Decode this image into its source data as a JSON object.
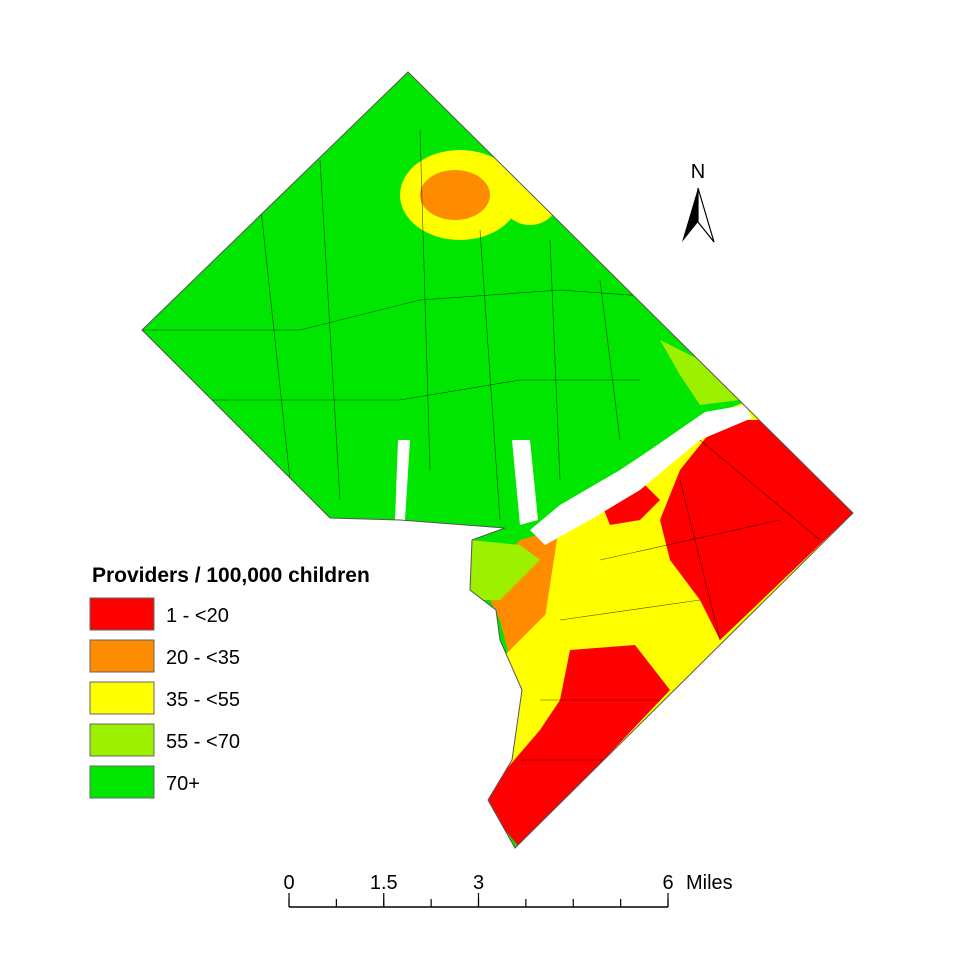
{
  "map": {
    "north_label": "N",
    "legend": {
      "title": "Providers / 100,000 children",
      "classes": [
        {
          "label": "1 - <20",
          "color": "#ff0000"
        },
        {
          "label": "20 - <35",
          "color": "#ff8c00"
        },
        {
          "label": "35 - <55",
          "color": "#ffff00"
        },
        {
          "label": "55 - <70",
          "color": "#9cf000"
        },
        {
          "label": "70+",
          "color": "#00e600"
        }
      ]
    },
    "scale_bar": {
      "ticks": [
        0,
        1.5,
        3,
        6
      ],
      "unit": "Miles"
    }
  }
}
